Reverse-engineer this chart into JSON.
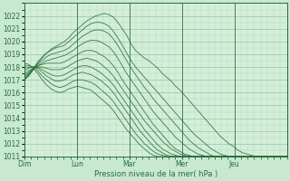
{
  "xlabel": "Pression niveau de la mer( hPa )",
  "background_color": "#c8e8d0",
  "plot_bg_color": "#d4eeda",
  "grid_major_color": "#90c8a0",
  "grid_minor_color": "#b0d8b8",
  "line_color": "#2a6e3a",
  "ylim": [
    1011,
    1023
  ],
  "yticks": [
    1011,
    1012,
    1013,
    1014,
    1015,
    1016,
    1017,
    1018,
    1019,
    1020,
    1021,
    1022
  ],
  "day_labels": [
    "Dim",
    "Lun",
    "Mar",
    "Mer",
    "Jeu"
  ],
  "day_positions": [
    0,
    24,
    48,
    72,
    96
  ],
  "total_hours": 120,
  "series": [
    [
      1017.0,
      1017.3,
      1017.8,
      1018.3,
      1018.7,
      1019.1,
      1019.4,
      1019.6,
      1019.8,
      1020.0,
      1020.3,
      1020.7,
      1021.0,
      1021.3,
      1021.6,
      1021.8,
      1022.0,
      1022.1,
      1022.2,
      1022.1,
      1021.9,
      1021.5,
      1021.0,
      1020.5,
      1019.8,
      1019.3,
      1019.0,
      1018.7,
      1018.5,
      1018.2,
      1017.9,
      1017.5,
      1017.2,
      1016.9,
      1016.5,
      1016.2,
      1015.8,
      1015.4,
      1015.0,
      1014.6,
      1014.2,
      1013.8,
      1013.4,
      1013.0,
      1012.6,
      1012.3,
      1012.0,
      1011.8,
      1011.5,
      1011.3,
      1011.2,
      1011.1,
      1011.0,
      1011.0,
      1011.0,
      1011.0,
      1011.0,
      1011.0,
      1011.0,
      1011.0
    ],
    [
      1017.0,
      1017.4,
      1017.9,
      1018.4,
      1018.8,
      1019.1,
      1019.3,
      1019.5,
      1019.6,
      1019.7,
      1020.0,
      1020.3,
      1020.6,
      1020.9,
      1021.2,
      1021.4,
      1021.5,
      1021.5,
      1021.4,
      1021.2,
      1020.8,
      1020.3,
      1019.7,
      1019.1,
      1018.5,
      1018.0,
      1017.6,
      1017.2,
      1016.8,
      1016.4,
      1016.0,
      1015.6,
      1015.2,
      1014.8,
      1014.4,
      1014.0,
      1013.6,
      1013.2,
      1012.8,
      1012.5,
      1012.2,
      1011.9,
      1011.6,
      1011.4,
      1011.2,
      1011.1,
      1011.0,
      1011.0,
      1011.0,
      1011.0,
      1011.0,
      1011.0,
      1011.0,
      1011.0,
      1011.0,
      1011.0,
      1011.0,
      1011.0,
      1011.0,
      1011.0
    ],
    [
      1017.1,
      1017.4,
      1017.8,
      1018.2,
      1018.5,
      1018.8,
      1019.0,
      1019.1,
      1019.2,
      1019.3,
      1019.5,
      1019.8,
      1020.1,
      1020.4,
      1020.6,
      1020.8,
      1020.9,
      1020.9,
      1020.8,
      1020.6,
      1020.2,
      1019.7,
      1019.1,
      1018.5,
      1017.9,
      1017.4,
      1016.9,
      1016.4,
      1016.0,
      1015.5,
      1015.1,
      1014.7,
      1014.3,
      1013.9,
      1013.5,
      1013.1,
      1012.7,
      1012.3,
      1012.0,
      1011.7,
      1011.5,
      1011.3,
      1011.1,
      1011.0,
      1011.0,
      1011.0,
      1011.0,
      1011.0,
      1011.0,
      1011.0,
      1011.0,
      1011.0,
      1011.0,
      1011.0,
      1011.0,
      1011.0,
      1011.0,
      1011.0,
      1011.0,
      1011.0
    ],
    [
      1017.2,
      1017.5,
      1017.8,
      1018.1,
      1018.3,
      1018.5,
      1018.6,
      1018.7,
      1018.8,
      1018.9,
      1019.1,
      1019.3,
      1019.6,
      1019.8,
      1020.0,
      1020.1,
      1020.1,
      1020.0,
      1019.8,
      1019.6,
      1019.2,
      1018.7,
      1018.1,
      1017.5,
      1017.0,
      1016.5,
      1016.0,
      1015.5,
      1015.0,
      1014.5,
      1014.1,
      1013.7,
      1013.3,
      1012.9,
      1012.5,
      1012.2,
      1011.9,
      1011.6,
      1011.4,
      1011.2,
      1011.1,
      1011.0,
      1011.0,
      1011.0,
      1011.0,
      1011.0,
      1011.0,
      1011.0,
      1011.0,
      1011.0,
      1011.0,
      1011.0,
      1011.0,
      1011.0,
      1011.0,
      1011.0,
      1011.0,
      1011.0,
      1011.0,
      1011.0
    ],
    [
      1017.3,
      1017.6,
      1017.9,
      1018.1,
      1018.2,
      1018.3,
      1018.3,
      1018.3,
      1018.3,
      1018.4,
      1018.6,
      1018.8,
      1019.0,
      1019.2,
      1019.3,
      1019.3,
      1019.2,
      1019.0,
      1018.8,
      1018.5,
      1018.1,
      1017.6,
      1017.0,
      1016.5,
      1016.0,
      1015.5,
      1015.0,
      1014.5,
      1014.0,
      1013.5,
      1013.1,
      1012.7,
      1012.3,
      1011.9,
      1011.6,
      1011.4,
      1011.2,
      1011.1,
      1011.0,
      1011.0,
      1011.0,
      1011.0,
      1011.0,
      1011.0,
      1011.0,
      1011.0,
      1011.0,
      1011.0,
      1011.0,
      1011.0,
      1011.0,
      1011.0,
      1011.0,
      1011.0,
      1011.0,
      1011.0,
      1011.0,
      1011.0,
      1011.0,
      1011.0
    ],
    [
      1017.5,
      1017.7,
      1017.9,
      1018.0,
      1018.0,
      1017.9,
      1017.8,
      1017.8,
      1017.8,
      1017.9,
      1018.1,
      1018.3,
      1018.5,
      1018.6,
      1018.7,
      1018.6,
      1018.5,
      1018.3,
      1018.0,
      1017.7,
      1017.3,
      1016.8,
      1016.3,
      1015.8,
      1015.3,
      1014.8,
      1014.3,
      1013.8,
      1013.4,
      1013.0,
      1012.6,
      1012.2,
      1011.9,
      1011.6,
      1011.4,
      1011.2,
      1011.1,
      1011.0,
      1011.0,
      1011.0,
      1011.0,
      1011.0,
      1011.0,
      1011.0,
      1011.0,
      1011.0,
      1011.0,
      1011.0,
      1011.0,
      1011.0,
      1011.0,
      1011.0,
      1011.0,
      1011.0,
      1011.0,
      1011.0,
      1011.0,
      1011.0,
      1011.0,
      1011.0
    ],
    [
      1017.7,
      1017.9,
      1018.0,
      1018.0,
      1017.8,
      1017.6,
      1017.4,
      1017.3,
      1017.3,
      1017.4,
      1017.6,
      1017.8,
      1018.0,
      1018.1,
      1018.1,
      1018.0,
      1017.8,
      1017.6,
      1017.3,
      1017.0,
      1016.6,
      1016.1,
      1015.6,
      1015.1,
      1014.6,
      1014.1,
      1013.6,
      1013.1,
      1012.7,
      1012.3,
      1011.9,
      1011.6,
      1011.4,
      1011.2,
      1011.1,
      1011.0,
      1011.0,
      1011.0,
      1011.0,
      1011.0,
      1011.0,
      1011.0,
      1011.0,
      1011.0,
      1011.0,
      1011.0,
      1011.0,
      1011.0,
      1011.0,
      1011.0,
      1011.0,
      1011.0,
      1011.0,
      1011.0,
      1011.0,
      1011.0,
      1011.0,
      1011.0,
      1011.0,
      1011.0
    ],
    [
      1017.9,
      1018.0,
      1018.0,
      1017.9,
      1017.6,
      1017.3,
      1017.1,
      1016.9,
      1016.9,
      1017.0,
      1017.2,
      1017.4,
      1017.5,
      1017.6,
      1017.5,
      1017.4,
      1017.2,
      1017.0,
      1016.7,
      1016.4,
      1016.0,
      1015.5,
      1015.0,
      1014.5,
      1014.0,
      1013.5,
      1013.0,
      1012.6,
      1012.2,
      1011.8,
      1011.5,
      1011.3,
      1011.1,
      1011.0,
      1011.0,
      1011.0,
      1011.0,
      1011.0,
      1011.0,
      1011.0,
      1011.0,
      1011.0,
      1011.0,
      1011.0,
      1011.0,
      1011.0,
      1011.0,
      1011.0,
      1011.0,
      1011.0,
      1011.0,
      1011.0,
      1011.0,
      1011.0,
      1011.0,
      1011.0,
      1011.0,
      1011.0,
      1011.0,
      1011.0
    ],
    [
      1018.1,
      1018.1,
      1018.0,
      1017.7,
      1017.3,
      1017.0,
      1016.7,
      1016.5,
      1016.4,
      1016.5,
      1016.7,
      1016.9,
      1017.0,
      1017.0,
      1016.9,
      1016.8,
      1016.6,
      1016.3,
      1016.0,
      1015.7,
      1015.3,
      1014.8,
      1014.3,
      1013.8,
      1013.3,
      1012.8,
      1012.4,
      1012.0,
      1011.7,
      1011.4,
      1011.2,
      1011.1,
      1011.0,
      1011.0,
      1011.0,
      1011.0,
      1011.0,
      1011.0,
      1011.0,
      1011.0,
      1011.0,
      1011.0,
      1011.0,
      1011.0,
      1011.0,
      1011.0,
      1011.0,
      1011.0,
      1011.0,
      1011.0,
      1011.0,
      1011.0,
      1011.0,
      1011.0,
      1011.0,
      1011.0,
      1011.0,
      1011.0,
      1011.0,
      1011.0
    ],
    [
      1018.3,
      1018.2,
      1017.9,
      1017.5,
      1017.0,
      1016.6,
      1016.3,
      1016.1,
      1016.0,
      1016.1,
      1016.3,
      1016.4,
      1016.5,
      1016.4,
      1016.3,
      1016.2,
      1015.9,
      1015.6,
      1015.3,
      1015.0,
      1014.6,
      1014.1,
      1013.6,
      1013.1,
      1012.7,
      1012.3,
      1011.9,
      1011.6,
      1011.3,
      1011.1,
      1011.0,
      1011.0,
      1011.0,
      1011.0,
      1011.0,
      1011.0,
      1011.0,
      1011.0,
      1011.0,
      1011.0,
      1011.0,
      1011.0,
      1011.0,
      1011.0,
      1011.0,
      1011.0,
      1011.0,
      1011.0,
      1011.0,
      1011.0,
      1011.0,
      1011.0,
      1011.0,
      1011.0,
      1011.0,
      1011.0,
      1011.0,
      1011.0,
      1011.0,
      1011.0
    ]
  ]
}
